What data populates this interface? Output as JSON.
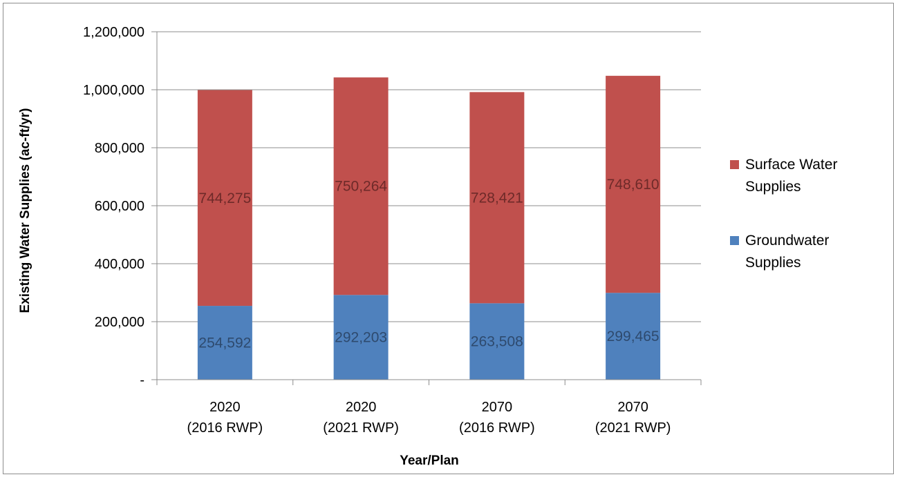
{
  "chart_data": {
    "type": "bar",
    "stacked": true,
    "title": "",
    "xlabel": "Year/Plan",
    "ylabel": "Existing Water Supplies (ac-ft/yr)",
    "categories": [
      [
        "2020",
        "(2016 RWP)"
      ],
      [
        "2020",
        "(2021 RWP)"
      ],
      [
        "2070",
        "(2016 RWP)"
      ],
      [
        "2070",
        "(2021 RWP)"
      ]
    ],
    "series": [
      {
        "name": "Groundwater Supplies",
        "legend_lines": [
          "Groundwater",
          "Supplies"
        ],
        "color": "#4f81bd",
        "label_color": "#2e4a6e",
        "values": [
          254592,
          292203,
          263508,
          299465
        ],
        "value_labels": [
          "254,592",
          "292,203",
          "263,508",
          "299,465"
        ]
      },
      {
        "name": "Surface Water Supplies",
        "legend_lines": [
          "Surface Water",
          "Supplies"
        ],
        "color": "#c0504d",
        "label_color": "#6e2a29",
        "values": [
          744275,
          750264,
          728421,
          748610
        ],
        "value_labels": [
          "744,275",
          "750,264",
          "728,421",
          "748,610"
        ]
      }
    ],
    "ylim": [
      0,
      1200000
    ],
    "yticks": [
      0,
      200000,
      400000,
      600000,
      800000,
      1000000,
      1200000
    ],
    "ytick_labels": [
      "-",
      "200,000",
      "400,000",
      "600,000",
      "800,000",
      "1,000,000",
      "1,200,000"
    ],
    "grid": true,
    "legend_position": "right"
  }
}
